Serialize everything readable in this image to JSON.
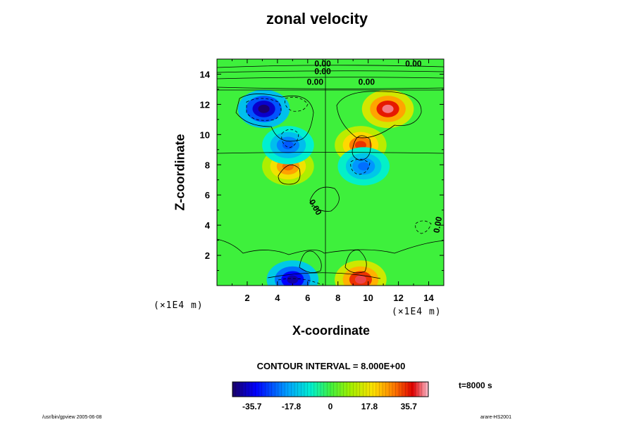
{
  "chart_data": {
    "type": "contour",
    "title": "zonal velocity",
    "xlabel": "X-coordinate",
    "ylabel": "Z-coordinate",
    "x_units": "(×1E4 m)",
    "z_units": "(×1E4 m)",
    "xlim": [
      0,
      15
    ],
    "zlim": [
      0,
      15
    ],
    "x_ticks": [
      "2",
      "4",
      "6",
      "8",
      "10",
      "12",
      "14"
    ],
    "z_ticks": [
      "2",
      "4",
      "6",
      "8",
      "10",
      "12",
      "14"
    ],
    "contour_labels": [
      "0.00",
      "0.00",
      "0.00",
      "0.00",
      "0.00",
      "0.00",
      "0.00"
    ],
    "contour_interval_text": "CONTOUR INTERVAL = 8.000E+00",
    "colorbar": {
      "range": [
        -44.6,
        44.6
      ],
      "ticks": [
        "-35.7",
        "-17.8",
        "0",
        "17.8",
        "35.7"
      ],
      "tick_values": [
        -35.7,
        -17.8,
        0,
        17.8,
        35.7
      ]
    },
    "time_label": "t=8000 s",
    "features": [
      {
        "x": 3.1,
        "z": 11.7,
        "value": -44
      },
      {
        "x": 11.3,
        "z": 11.7,
        "value": 42
      },
      {
        "x": 4.7,
        "z": 7.9,
        "value": 30
      },
      {
        "x": 9.5,
        "z": 9.3,
        "value": 34
      },
      {
        "x": 4.7,
        "z": 9.3,
        "value": -26
      },
      {
        "x": 9.7,
        "z": 7.9,
        "value": -24
      },
      {
        "x": 9.5,
        "z": 0.4,
        "value": 40
      },
      {
        "x": 5.0,
        "z": 0.4,
        "value": -40
      }
    ]
  },
  "footer": {
    "left": "/usr/bin/gpview 2005-06-08",
    "right": "arare-HS2001"
  }
}
